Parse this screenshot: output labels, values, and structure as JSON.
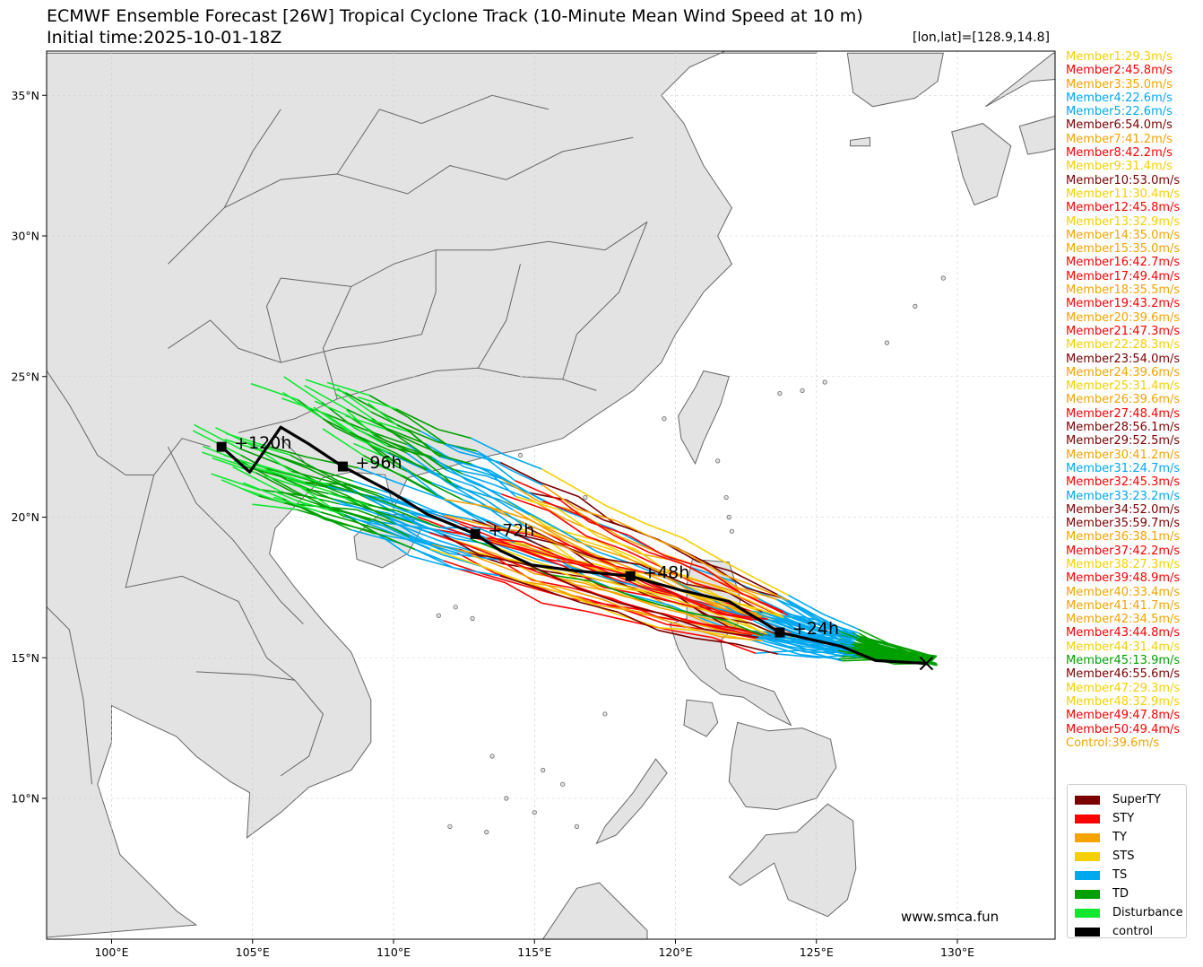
{
  "title": "ECMWF Ensemble Forecast [26W] Tropical Cyclone Track (10-Minute Mean Wind Speed at 10 m)",
  "subtitle": "Initial time:2025-10-01-18Z",
  "lonlat": "[lon,lat]=[128.9,14.8]",
  "watermark": "www.smca.fun",
  "colors": {
    "SuperTY": "#7a0000",
    "STY": "#ff0000",
    "TY": "#f5a300",
    "STS": "#f5d000",
    "TS": "#00a8f0",
    "TD": "#00a000",
    "Disturbance": "#10e830",
    "control": "#000000",
    "land": "#e3e3e3",
    "coast": "#666666"
  },
  "axes": {
    "lon_ticks": [
      "100°E",
      "105°E",
      "110°E",
      "115°E",
      "120°E",
      "125°E",
      "130°E"
    ],
    "lat_ticks": [
      "10°N",
      "15°N",
      "20°N",
      "25°N",
      "30°N",
      "35°N"
    ]
  },
  "members": [
    {
      "label": "Member1:29.3m/s",
      "cat": "STS"
    },
    {
      "label": "Member2:45.8m/s",
      "cat": "STY"
    },
    {
      "label": "Member3:35.0m/s",
      "cat": "TY"
    },
    {
      "label": "Member4:22.6m/s",
      "cat": "TS"
    },
    {
      "label": "Member5:22.6m/s",
      "cat": "TS"
    },
    {
      "label": "Member6:54.0m/s",
      "cat": "SuperTY"
    },
    {
      "label": "Member7:41.2m/s",
      "cat": "TY"
    },
    {
      "label": "Member8:42.2m/s",
      "cat": "STY"
    },
    {
      "label": "Member9:31.4m/s",
      "cat": "STS"
    },
    {
      "label": "Member10:53.0m/s",
      "cat": "SuperTY"
    },
    {
      "label": "Member11:30.4m/s",
      "cat": "STS"
    },
    {
      "label": "Member12:45.8m/s",
      "cat": "STY"
    },
    {
      "label": "Member13:32.9m/s",
      "cat": "STS"
    },
    {
      "label": "Member14:35.0m/s",
      "cat": "TY"
    },
    {
      "label": "Member15:35.0m/s",
      "cat": "TY"
    },
    {
      "label": "Member16:42.7m/s",
      "cat": "STY"
    },
    {
      "label": "Member17:49.4m/s",
      "cat": "STY"
    },
    {
      "label": "Member18:35.5m/s",
      "cat": "TY"
    },
    {
      "label": "Member19:43.2m/s",
      "cat": "STY"
    },
    {
      "label": "Member20:39.6m/s",
      "cat": "TY"
    },
    {
      "label": "Member21:47.3m/s",
      "cat": "STY"
    },
    {
      "label": "Member22:28.3m/s",
      "cat": "STS"
    },
    {
      "label": "Member23:54.0m/s",
      "cat": "SuperTY"
    },
    {
      "label": "Member24:39.6m/s",
      "cat": "TY"
    },
    {
      "label": "Member25:31.4m/s",
      "cat": "STS"
    },
    {
      "label": "Member26:39.6m/s",
      "cat": "TY"
    },
    {
      "label": "Member27:48.4m/s",
      "cat": "STY"
    },
    {
      "label": "Member28:56.1m/s",
      "cat": "SuperTY"
    },
    {
      "label": "Member29:52.5m/s",
      "cat": "SuperTY"
    },
    {
      "label": "Member30:41.2m/s",
      "cat": "TY"
    },
    {
      "label": "Member31:24.7m/s",
      "cat": "TS"
    },
    {
      "label": "Member32:45.3m/s",
      "cat": "STY"
    },
    {
      "label": "Member33:23.2m/s",
      "cat": "TS"
    },
    {
      "label": "Member34:52.0m/s",
      "cat": "SuperTY"
    },
    {
      "label": "Member35:59.7m/s",
      "cat": "SuperTY"
    },
    {
      "label": "Member36:38.1m/s",
      "cat": "TY"
    },
    {
      "label": "Member37:42.2m/s",
      "cat": "STY"
    },
    {
      "label": "Member38:27.3m/s",
      "cat": "STS"
    },
    {
      "label": "Member39:48.9m/s",
      "cat": "STY"
    },
    {
      "label": "Member40:33.4m/s",
      "cat": "TY"
    },
    {
      "label": "Member41:41.7m/s",
      "cat": "TY"
    },
    {
      "label": "Member42:34.5m/s",
      "cat": "TY"
    },
    {
      "label": "Member43:44.8m/s",
      "cat": "STY"
    },
    {
      "label": "Member44:31.4m/s",
      "cat": "STS"
    },
    {
      "label": "Member45:13.9m/s",
      "cat": "TD"
    },
    {
      "label": "Member46:55.6m/s",
      "cat": "SuperTY"
    },
    {
      "label": "Member47:29.3m/s",
      "cat": "STS"
    },
    {
      "label": "Member48:32.9m/s",
      "cat": "STS"
    },
    {
      "label": "Member49:47.8m/s",
      "cat": "STY"
    },
    {
      "label": "Member50:49.4m/s",
      "cat": "STY"
    },
    {
      "label": "Control:39.6m/s",
      "cat": "TY"
    }
  ],
  "legend": [
    {
      "label": "SuperTY",
      "cat": "SuperTY"
    },
    {
      "label": "STY",
      "cat": "STY"
    },
    {
      "label": "TY",
      "cat": "TY"
    },
    {
      "label": "STS",
      "cat": "STS"
    },
    {
      "label": "TS",
      "cat": "TS"
    },
    {
      "label": "TD",
      "cat": "TD"
    },
    {
      "label": "Disturbance",
      "cat": "Disturbance"
    },
    {
      "label": "control",
      "cat": "control"
    }
  ],
  "control_track": [
    [
      128.9,
      14.8
    ],
    [
      127.1,
      14.9
    ],
    [
      125.9,
      15.4
    ],
    [
      123.7,
      15.9
    ],
    [
      121.9,
      17.0
    ],
    [
      120.2,
      17.4
    ],
    [
      118.4,
      17.9
    ],
    [
      116.4,
      18.1
    ],
    [
      114.9,
      18.3
    ],
    [
      113.8,
      18.8
    ],
    [
      112.9,
      19.4
    ],
    [
      111.2,
      20.1
    ],
    [
      109.9,
      20.9
    ],
    [
      108.2,
      21.8
    ],
    [
      107.0,
      22.6
    ],
    [
      106.0,
      23.2
    ],
    [
      104.9,
      21.6
    ],
    [
      103.9,
      22.5
    ]
  ],
  "hour_markers": [
    {
      "label": "+24h",
      "lon": 123.7,
      "lat": 15.9
    },
    {
      "label": "+48h",
      "lon": 118.4,
      "lat": 17.9
    },
    {
      "label": "+72h",
      "lon": 112.9,
      "lat": 19.4
    },
    {
      "label": "+96h",
      "lon": 108.2,
      "lat": 21.8
    },
    {
      "label": "+120h",
      "lon": 103.9,
      "lat": 22.5
    }
  ]
}
